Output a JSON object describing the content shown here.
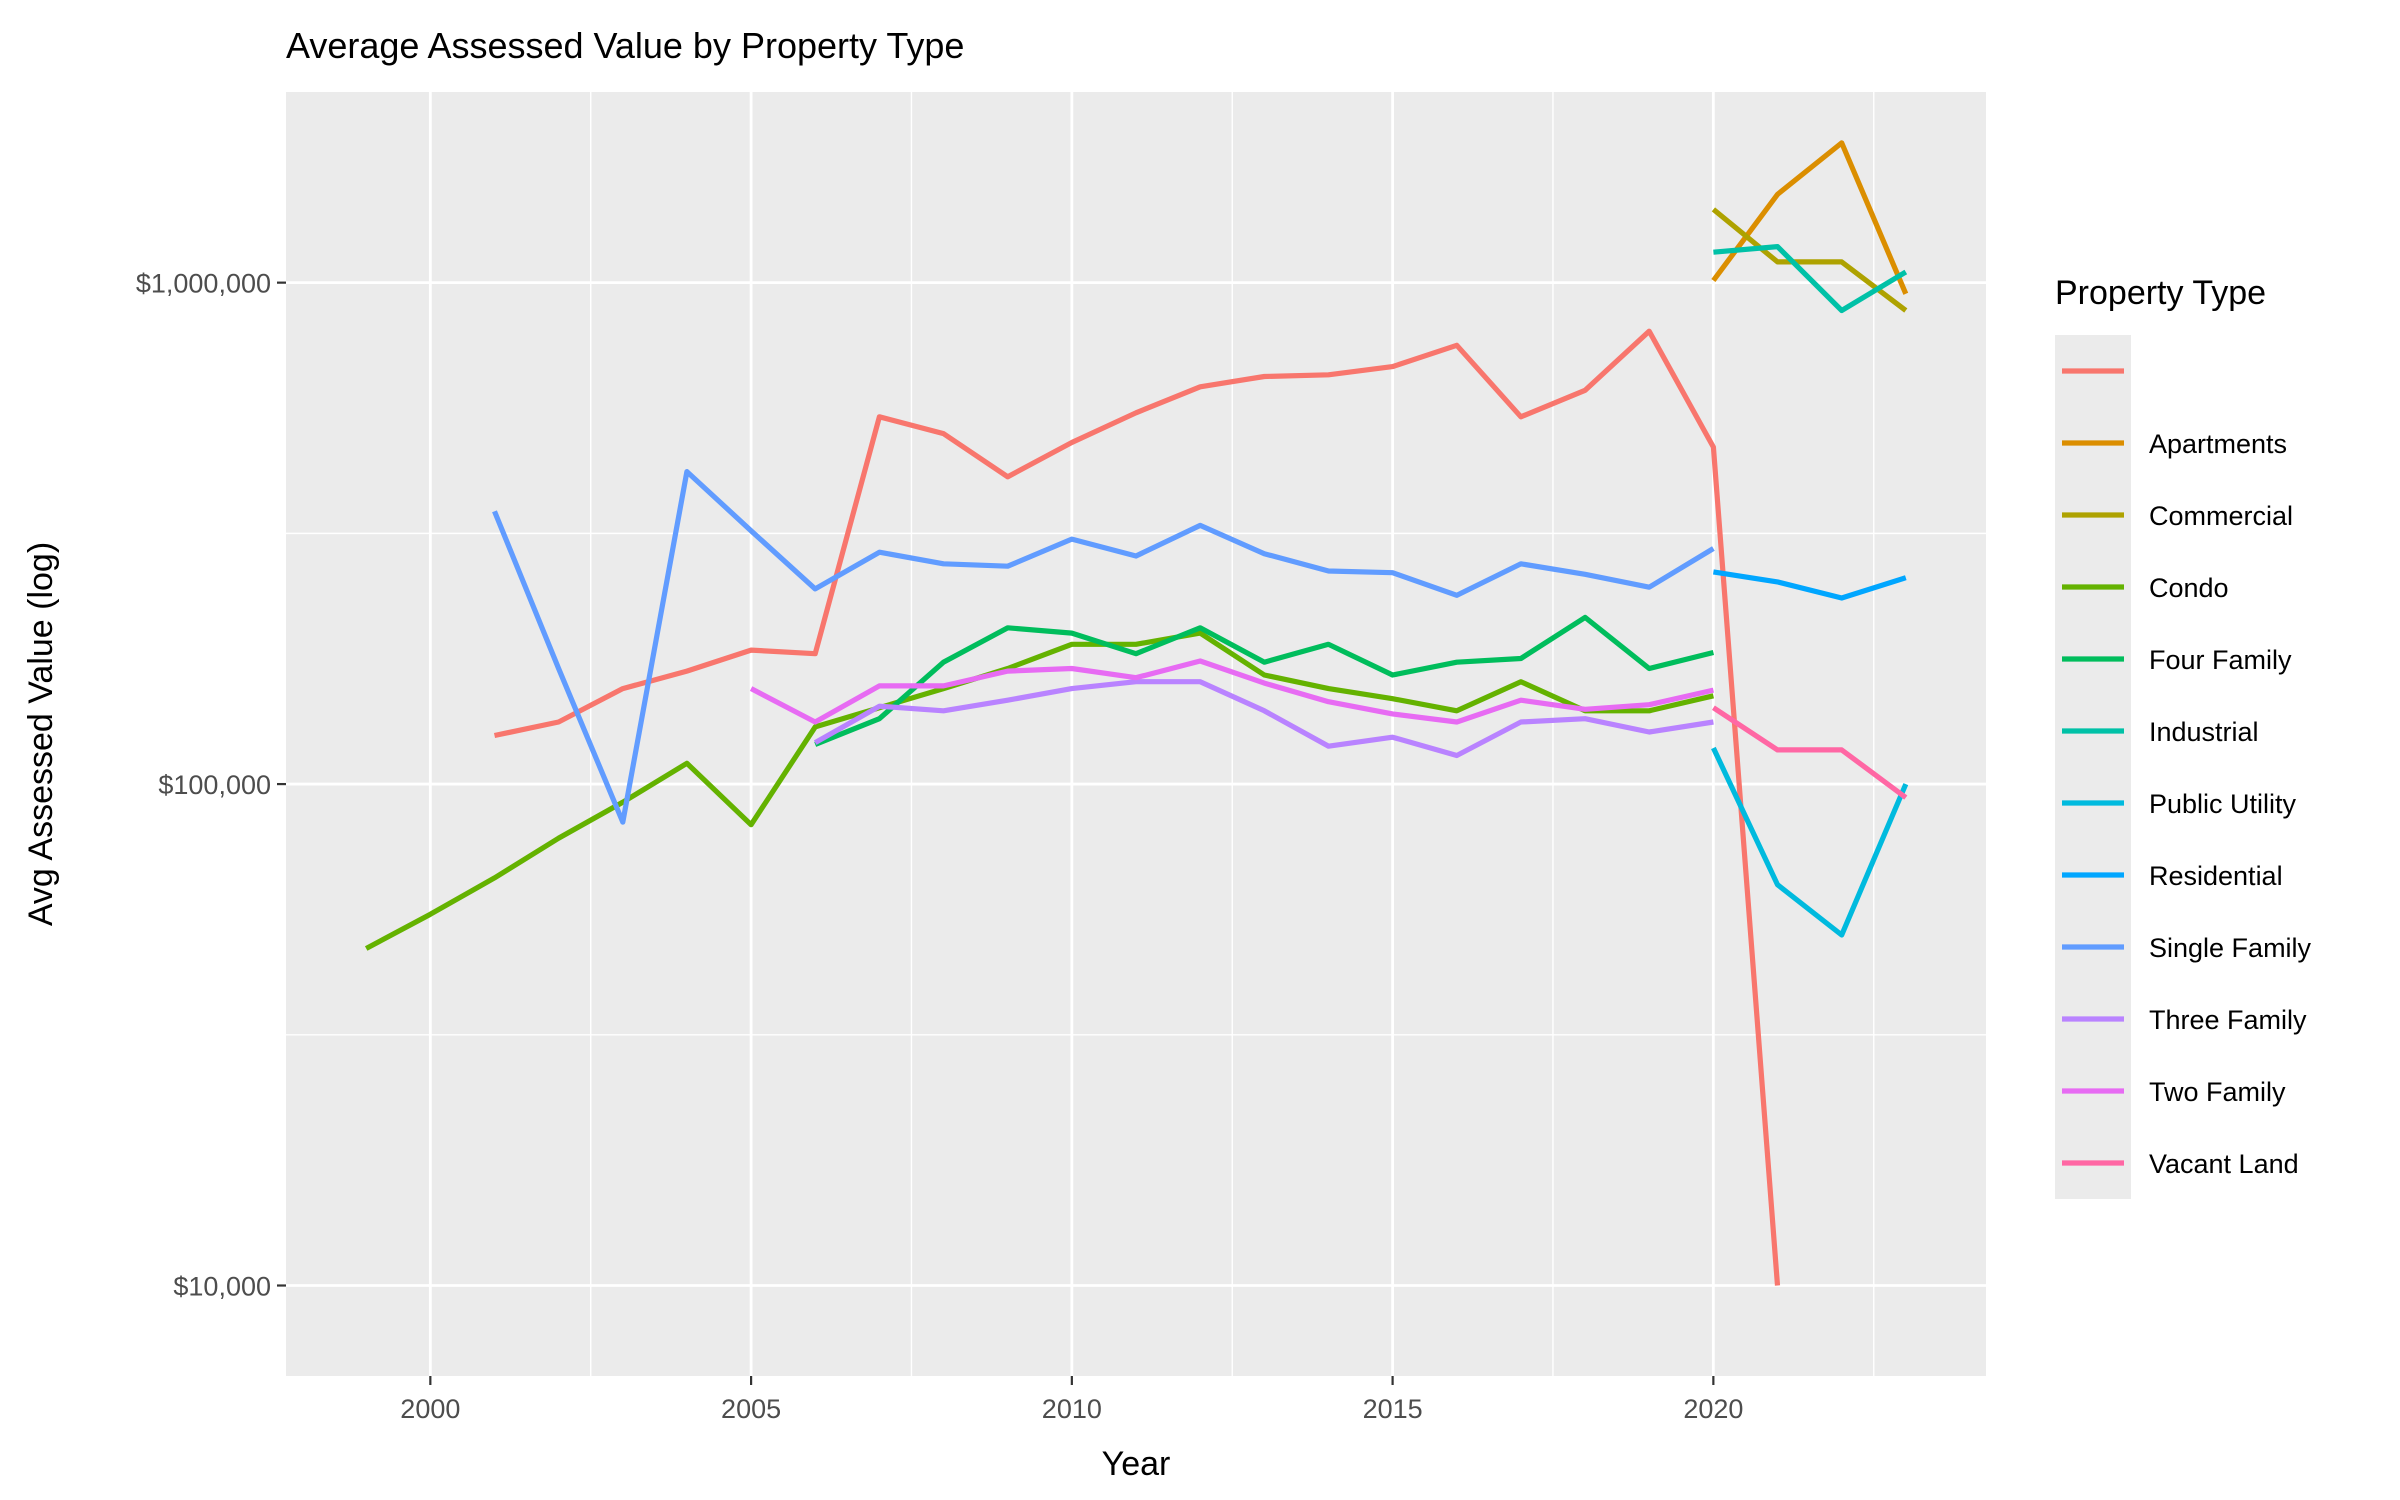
{
  "chart_data": {
    "type": "line",
    "title": "Average Assessed Value by Property Type",
    "xlabel": "Year",
    "ylabel": "Avg Assessed Value (log)",
    "y_scale": "log10",
    "xlim": [
      1997.75,
      2024.25
    ],
    "ylim": [
      6600,
      2400000
    ],
    "x_ticks": [
      2000,
      2005,
      2010,
      2015,
      2020
    ],
    "x_tick_labels": [
      "2000",
      "2005",
      "2010",
      "2015",
      "2020"
    ],
    "y_ticks": [
      10000,
      100000,
      1000000
    ],
    "y_tick_labels": [
      "$10,000",
      "$100,000",
      "$1,000,000"
    ],
    "grid": true,
    "legend_position": "right",
    "legend_title": "Property Type",
    "series": [
      {
        "name": "",
        "color": "#F8766D",
        "x": [
          2001,
          2002,
          2003,
          2004,
          2005,
          2006,
          2007,
          2008,
          2009,
          2010,
          2011,
          2012,
          2013,
          2014,
          2015,
          2016,
          2017,
          2018,
          2019,
          2020,
          2021
        ],
        "y": [
          125000,
          133000,
          155000,
          168000,
          185000,
          182000,
          540000,
          500000,
          410000,
          480000,
          550000,
          620000,
          650000,
          655000,
          680000,
          750000,
          540000,
          610000,
          800000,
          470000,
          10000
        ]
      },
      {
        "name": "Apartments",
        "color": "#DB8E00",
        "x": [
          2020,
          2021,
          2022,
          2023
        ],
        "y": [
          1010000,
          1500000,
          1900000,
          950000
        ]
      },
      {
        "name": "Commercial",
        "color": "#AEA200",
        "x": [
          2020,
          2021,
          2022,
          2023
        ],
        "y": [
          1400000,
          1100000,
          1100000,
          880000
        ]
      },
      {
        "name": "Condo",
        "color": "#64B200",
        "x": [
          1999,
          2000,
          2001,
          2002,
          2003,
          2004,
          2005,
          2006,
          2007,
          2008,
          2009,
          2010,
          2011,
          2012,
          2013,
          2014,
          2015,
          2016,
          2017,
          2018,
          2019,
          2020
        ],
        "y": [
          47000,
          55000,
          65000,
          78000,
          92000,
          110000,
          83000,
          130000,
          142000,
          155000,
          170000,
          190000,
          190000,
          200000,
          165000,
          155000,
          148000,
          140000,
          160000,
          140000,
          140000,
          150000
        ]
      },
      {
        "name": "Four Family",
        "color": "#00BD5C",
        "x": [
          2006,
          2007,
          2008,
          2009,
          2010,
          2011,
          2012,
          2013,
          2014,
          2015,
          2016,
          2017,
          2018,
          2019,
          2020
        ],
        "y": [
          120000,
          135000,
          175000,
          205000,
          200000,
          182000,
          205000,
          175000,
          190000,
          165000,
          175000,
          178000,
          215000,
          170000,
          183000
        ]
      },
      {
        "name": "Industrial",
        "color": "#00C1A7",
        "x": [
          2020,
          2021,
          2022,
          2023
        ],
        "y": [
          1150000,
          1180000,
          880000,
          1050000
        ]
      },
      {
        "name": "Public Utility",
        "color": "#00BADE",
        "x": [
          2020,
          2021,
          2022,
          2023
        ],
        "y": [
          118000,
          63000,
          50000,
          100000
        ]
      },
      {
        "name": "Residential",
        "color": "#00A6FF",
        "x": [
          2020,
          2021,
          2022,
          2023
        ],
        "y": [
          265000,
          253000,
          235000,
          258000
        ]
      },
      {
        "name": "Single Family",
        "color": "#619CFF",
        "x": [
          2001,
          2002,
          2003,
          2004,
          2005,
          2006,
          2007,
          2008,
          2009,
          2010,
          2011,
          2012,
          2013,
          2014,
          2015,
          2016,
          2017,
          2018,
          2019,
          2020
        ],
        "y": [
          350000,
          170000,
          84000,
          420000,
          320000,
          245000,
          290000,
          275000,
          272000,
          308000,
          285000,
          328000,
          288000,
          266000,
          264000,
          238000,
          275000,
          262000,
          247000,
          295000
        ]
      },
      {
        "name": "Three Family",
        "color": "#B983FF",
        "x": [
          2006,
          2007,
          2008,
          2009,
          2010,
          2011,
          2012,
          2013,
          2014,
          2015,
          2016,
          2017,
          2018,
          2019,
          2020
        ],
        "y": [
          121000,
          143000,
          140000,
          147000,
          155000,
          160000,
          160000,
          140000,
          119000,
          124000,
          114000,
          133000,
          135000,
          127000,
          133000
        ]
      },
      {
        "name": "Two Family",
        "color": "#E76BF3",
        "x": [
          2005,
          2006,
          2007,
          2008,
          2009,
          2010,
          2011,
          2012,
          2013,
          2014,
          2015,
          2016,
          2017,
          2018,
          2019,
          2020
        ],
        "y": [
          155000,
          133000,
          157000,
          157000,
          168000,
          170000,
          163000,
          176000,
          159000,
          146000,
          138000,
          133000,
          147000,
          141000,
          144000,
          154000
        ]
      },
      {
        "name": "Vacant Land",
        "color": "#FF67A4",
        "x": [
          2020,
          2021,
          2022,
          2023
        ],
        "y": [
          142000,
          117000,
          117000,
          94000
        ]
      }
    ]
  }
}
